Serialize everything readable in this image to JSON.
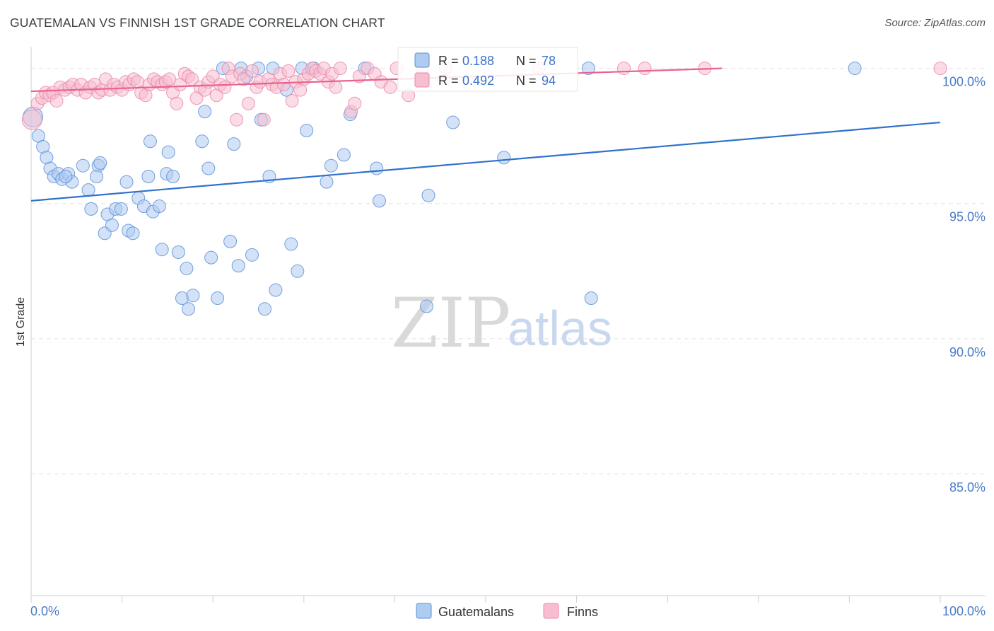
{
  "title": "GUATEMALAN VS FINNISH 1ST GRADE CORRELATION CHART",
  "source": "Source: ZipAtlas.com",
  "watermark": {
    "zip": "ZIP",
    "atlas": "atlas"
  },
  "colors": {
    "blue_fill": "#aecbf0",
    "blue_stroke": "#5a8fd6",
    "blue_line": "#2f72cc",
    "pink_fill": "#f7bdd0",
    "pink_stroke": "#e98aa8",
    "pink_line": "#e8628f",
    "axis_text": "#4a7cc7",
    "grid": "#e4e4e4"
  },
  "legend_top": {
    "rows": [
      {
        "r_label": "R =",
        "r_value": "0.188",
        "n_label": "N =",
        "n_value": "78",
        "swatch": "blue"
      },
      {
        "r_label": "R =",
        "r_value": "0.492",
        "n_label": "N =",
        "n_value": "94",
        "swatch": "pink"
      }
    ]
  },
  "chart_data": {
    "type": "scatter",
    "title": "GUATEMALAN VS FINNISH 1ST GRADE CORRELATION CHART",
    "xlabel": "",
    "ylabel": "1st Grade",
    "xlim": [
      0,
      100
    ],
    "ylim": [
      80.5,
      100.8
    ],
    "x_tick_labels": [
      "0.0%",
      "100.0%"
    ],
    "y_ticks": [
      85,
      90,
      95,
      100
    ],
    "y_tick_labels": [
      "85.0%",
      "90.0%",
      "95.0%",
      "100.0%"
    ],
    "grid": true,
    "legend_position": "bottom",
    "series": [
      {
        "name": "Guatemalans",
        "color": "blue",
        "R": 0.188,
        "N": 78,
        "trend": {
          "x": [
            0,
            100
          ],
          "y": [
            95.1,
            98.0
          ]
        },
        "points": [
          [
            0.2,
            98.2
          ],
          [
            0.8,
            97.5
          ],
          [
            1.3,
            97.1
          ],
          [
            1.7,
            96.7
          ],
          [
            2.1,
            96.3
          ],
          [
            2.5,
            96.0
          ],
          [
            3.0,
            96.1
          ],
          [
            3.4,
            95.9
          ],
          [
            4.1,
            96.1
          ],
          [
            4.5,
            95.8
          ],
          [
            3.8,
            96.0
          ],
          [
            5.7,
            96.4
          ],
          [
            6.3,
            95.5
          ],
          [
            7.4,
            96.4
          ],
          [
            6.6,
            94.8
          ],
          [
            7.2,
            96.0
          ],
          [
            7.6,
            96.5
          ],
          [
            8.1,
            93.9
          ],
          [
            8.4,
            94.6
          ],
          [
            8.9,
            94.2
          ],
          [
            9.3,
            94.8
          ],
          [
            9.9,
            94.8
          ],
          [
            10.5,
            95.8
          ],
          [
            10.7,
            94.0
          ],
          [
            11.2,
            93.9
          ],
          [
            11.8,
            95.2
          ],
          [
            12.4,
            94.9
          ],
          [
            12.9,
            96.0
          ],
          [
            13.1,
            97.3
          ],
          [
            13.4,
            94.7
          ],
          [
            14.1,
            94.9
          ],
          [
            14.4,
            93.3
          ],
          [
            14.9,
            96.1
          ],
          [
            15.1,
            96.9
          ],
          [
            15.6,
            96.0
          ],
          [
            16.2,
            93.2
          ],
          [
            16.6,
            91.5
          ],
          [
            17.1,
            92.6
          ],
          [
            17.3,
            91.1
          ],
          [
            17.8,
            91.6
          ],
          [
            18.8,
            97.3
          ],
          [
            19.1,
            98.4
          ],
          [
            19.5,
            96.3
          ],
          [
            19.8,
            93.0
          ],
          [
            20.5,
            91.5
          ],
          [
            21.1,
            100.0
          ],
          [
            21.9,
            93.6
          ],
          [
            22.3,
            97.2
          ],
          [
            22.8,
            92.7
          ],
          [
            23.1,
            100.0
          ],
          [
            23.7,
            99.7
          ],
          [
            24.3,
            93.1
          ],
          [
            25.0,
            100.0
          ],
          [
            25.3,
            98.1
          ],
          [
            25.7,
            91.1
          ],
          [
            26.2,
            96.0
          ],
          [
            26.6,
            100.0
          ],
          [
            26.9,
            91.8
          ],
          [
            28.1,
            99.2
          ],
          [
            28.6,
            93.5
          ],
          [
            29.3,
            92.5
          ],
          [
            29.8,
            100.0
          ],
          [
            30.3,
            97.7
          ],
          [
            31.1,
            100.0
          ],
          [
            32.5,
            95.8
          ],
          [
            33.0,
            96.4
          ],
          [
            34.4,
            96.8
          ],
          [
            35.1,
            98.3
          ],
          [
            36.7,
            100.0
          ],
          [
            38.0,
            96.3
          ],
          [
            38.3,
            95.1
          ],
          [
            43.5,
            91.2
          ],
          [
            43.7,
            95.3
          ],
          [
            46.4,
            98.0
          ],
          [
            52.0,
            96.7
          ],
          [
            61.3,
            100.0
          ],
          [
            61.6,
            91.5
          ],
          [
            90.6,
            100.0
          ]
        ]
      },
      {
        "name": "Finns",
        "color": "pink",
        "R": 0.492,
        "N": 94,
        "trend": {
          "x": [
            0,
            76
          ],
          "y": [
            99.15,
            100.0
          ]
        },
        "points": [
          [
            0.1,
            98.1
          ],
          [
            0.7,
            98.7
          ],
          [
            1.2,
            98.9
          ],
          [
            1.6,
            99.1
          ],
          [
            2.0,
            99.0
          ],
          [
            2.4,
            99.1
          ],
          [
            2.8,
            98.8
          ],
          [
            3.2,
            99.3
          ],
          [
            3.7,
            99.2
          ],
          [
            4.2,
            99.3
          ],
          [
            4.6,
            99.4
          ],
          [
            5.1,
            99.2
          ],
          [
            5.5,
            99.4
          ],
          [
            6.0,
            99.1
          ],
          [
            6.5,
            99.3
          ],
          [
            7.0,
            99.4
          ],
          [
            7.4,
            99.1
          ],
          [
            7.8,
            99.2
          ],
          [
            8.2,
            99.6
          ],
          [
            8.7,
            99.2
          ],
          [
            9.1,
            99.4
          ],
          [
            9.5,
            99.3
          ],
          [
            10.0,
            99.2
          ],
          [
            10.4,
            99.5
          ],
          [
            10.8,
            99.4
          ],
          [
            11.3,
            99.6
          ],
          [
            11.7,
            99.5
          ],
          [
            12.1,
            99.1
          ],
          [
            12.6,
            99.0
          ],
          [
            13.0,
            99.4
          ],
          [
            13.5,
            99.6
          ],
          [
            13.9,
            99.5
          ],
          [
            14.4,
            99.4
          ],
          [
            14.8,
            99.5
          ],
          [
            15.2,
            99.6
          ],
          [
            15.6,
            99.1
          ],
          [
            16.0,
            98.7
          ],
          [
            16.4,
            99.4
          ],
          [
            16.9,
            99.8
          ],
          [
            17.3,
            99.7
          ],
          [
            17.7,
            99.6
          ],
          [
            18.2,
            98.9
          ],
          [
            18.6,
            99.3
          ],
          [
            19.1,
            99.2
          ],
          [
            19.5,
            99.5
          ],
          [
            20.0,
            99.7
          ],
          [
            20.4,
            99.0
          ],
          [
            20.8,
            99.4
          ],
          [
            21.3,
            99.3
          ],
          [
            21.7,
            100.0
          ],
          [
            22.1,
            99.7
          ],
          [
            22.6,
            98.1
          ],
          [
            23.0,
            99.8
          ],
          [
            23.4,
            99.6
          ],
          [
            23.9,
            98.7
          ],
          [
            24.3,
            99.9
          ],
          [
            24.8,
            99.3
          ],
          [
            25.2,
            99.5
          ],
          [
            25.6,
            98.1
          ],
          [
            26.1,
            99.6
          ],
          [
            26.5,
            99.4
          ],
          [
            27.0,
            99.3
          ],
          [
            27.4,
            99.8
          ],
          [
            27.8,
            99.4
          ],
          [
            28.3,
            99.9
          ],
          [
            28.7,
            98.8
          ],
          [
            29.1,
            99.5
          ],
          [
            29.6,
            99.2
          ],
          [
            30.0,
            99.6
          ],
          [
            30.5,
            99.8
          ],
          [
            30.9,
            100.0
          ],
          [
            31.3,
            99.9
          ],
          [
            31.8,
            99.8
          ],
          [
            32.2,
            100.0
          ],
          [
            32.7,
            99.5
          ],
          [
            33.1,
            99.8
          ],
          [
            33.5,
            99.3
          ],
          [
            34.0,
            100.0
          ],
          [
            35.2,
            98.4
          ],
          [
            35.6,
            98.7
          ],
          [
            36.1,
            99.7
          ],
          [
            37.0,
            100.0
          ],
          [
            37.8,
            99.8
          ],
          [
            38.5,
            99.5
          ],
          [
            39.5,
            99.3
          ],
          [
            40.2,
            100.0
          ],
          [
            41.5,
            99.0
          ],
          [
            43.0,
            100.0
          ],
          [
            45.6,
            100.0
          ],
          [
            55.8,
            100.0
          ],
          [
            65.2,
            100.0
          ],
          [
            67.5,
            100.0
          ],
          [
            74.1,
            100.0
          ],
          [
            100.0,
            100.0
          ]
        ]
      }
    ]
  }
}
